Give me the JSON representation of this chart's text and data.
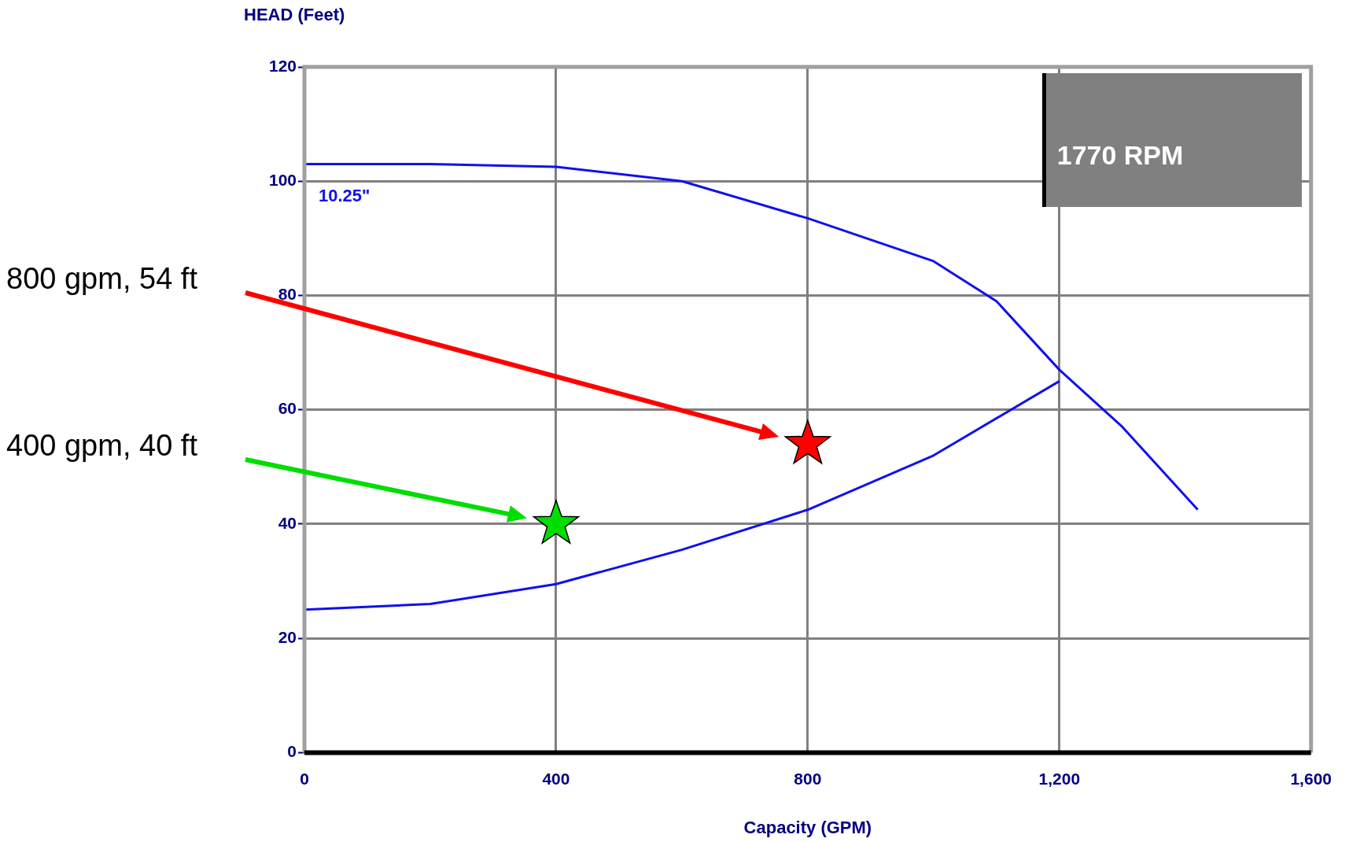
{
  "chart_data": {
    "type": "line",
    "xlabel": "Capacity (GPM)",
    "ylabel": "HEAD (Feet)",
    "xlim": [
      0,
      1600
    ],
    "xticks": [
      0,
      400,
      800,
      {
        "value": 1200,
        "label": "1,200"
      },
      {
        "value": 1600,
        "label": "1,600"
      }
    ],
    "ylim": [
      0,
      120
    ],
    "yticks": [
      0,
      20,
      40,
      60,
      80,
      100,
      120
    ],
    "grid": true,
    "legend": false,
    "marker": "none",
    "line_style": "solid",
    "series": [
      {
        "name": "10.25\"",
        "color": "#1010ee",
        "x": [
          0,
          200,
          400,
          600,
          800,
          1000,
          1100,
          1200,
          1300,
          1420
        ],
        "values": [
          103,
          103,
          102.5,
          100,
          93.5,
          86,
          79,
          67,
          57,
          42.5
        ]
      },
      {
        "color": "#1010ee",
        "x": [
          0,
          200,
          400,
          600,
          800,
          1000,
          1200
        ],
        "values": [
          25,
          26,
          29.5,
          35.5,
          42.5,
          52,
          65
        ]
      },
      {
        "type": "scatter",
        "marker": "star",
        "color": "#ff0000",
        "x": [
          800
        ],
        "values": [
          54
        ]
      },
      {
        "type": "scatter",
        "marker": "star",
        "color": "#00dd00",
        "x": [
          400
        ],
        "values": [
          40
        ]
      }
    ],
    "annotations": [
      "800 gpm, 54 ft",
      "400 gpm, 40 ft",
      "1770 RPM"
    ]
  }
}
